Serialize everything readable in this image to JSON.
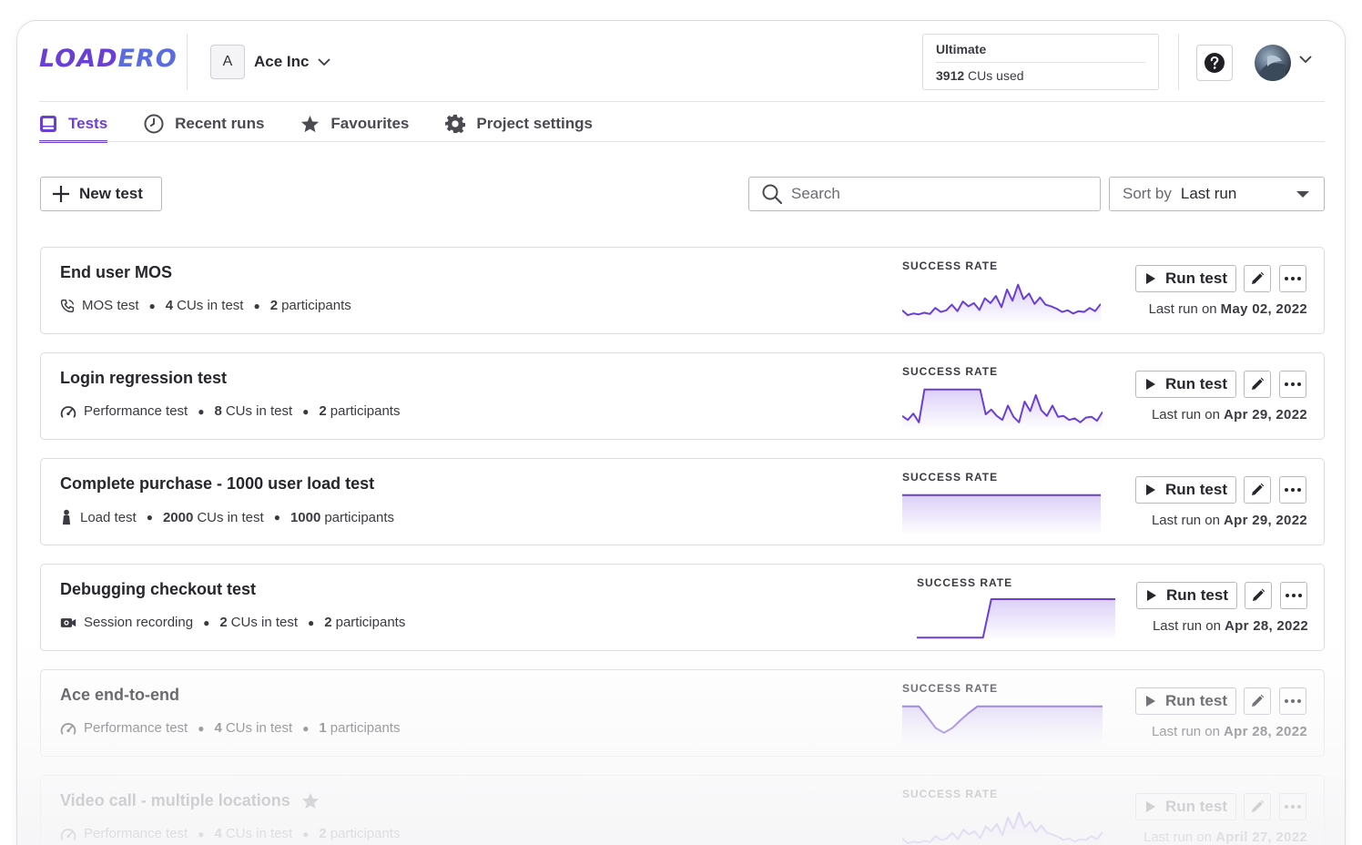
{
  "brand": {
    "logo_a": "LOAD",
    "logo_b": "ERO",
    "accent": "#6a3fd6"
  },
  "org": {
    "badge": "A",
    "name": "Ace Inc"
  },
  "plan": {
    "name": "Ultimate",
    "cus_used_value": "3912",
    "cus_used_suffix": "CUs used"
  },
  "tabs": [
    {
      "label": "Tests",
      "icon": "tests-icon",
      "active": true
    },
    {
      "label": "Recent runs",
      "icon": "clock-icon",
      "active": false
    },
    {
      "label": "Favourites",
      "icon": "star-icon",
      "active": false
    },
    {
      "label": "Project settings",
      "icon": "gear-icon",
      "active": false
    }
  ],
  "toolbar": {
    "new_test_label": "New test",
    "search_placeholder": "Search",
    "sort_prefix": "Sort by",
    "sort_value": "Last run"
  },
  "card_common": {
    "success_rate_label": "SUCCESS RATE",
    "run_label": "Run test",
    "last_run_prefix": "Last run on"
  },
  "tests": [
    {
      "title": "End user MOS",
      "type": "MOS test",
      "type_icon": "phone-icon",
      "cus": "4",
      "cus_suffix": "CUs in test",
      "participants": "2",
      "participants_suffix": "participants",
      "last_run_date": "May 02, 2022",
      "favourite": false,
      "success_rate": [
        0.3,
        0.18,
        0.22,
        0.2,
        0.24,
        0.21,
        0.36,
        0.26,
        0.3,
        0.44,
        0.28,
        0.52,
        0.4,
        0.48,
        0.31,
        0.6,
        0.48,
        0.66,
        0.38,
        0.82,
        0.54,
        0.94,
        0.58,
        0.72,
        0.46,
        0.62,
        0.44,
        0.4,
        0.34,
        0.26,
        0.3,
        0.22,
        0.28,
        0.26,
        0.36,
        0.28,
        0.46
      ]
    },
    {
      "title": "Login regression test",
      "type": "Performance test",
      "type_icon": "gauge-icon",
      "cus": "8",
      "cus_suffix": "CUs in test",
      "participants": "2",
      "participants_suffix": "participants",
      "last_run_date": "Apr 29, 2022",
      "favourite": false,
      "success_rate": [
        0.3,
        0.2,
        0.36,
        0.14,
        0.96,
        0.96,
        0.96,
        0.96,
        0.96,
        0.96,
        0.96,
        0.96,
        0.96,
        0.96,
        0.96,
        0.34,
        0.46,
        0.3,
        0.2,
        0.56,
        0.28,
        0.14,
        0.66,
        0.42,
        0.82,
        0.44,
        0.3,
        0.56,
        0.28,
        0.3,
        0.2,
        0.24,
        0.14,
        0.26,
        0.28,
        0.18,
        0.4
      ]
    },
    {
      "title": "Complete purchase - 1000 user load test",
      "type": "Load test",
      "type_icon": "person-icon",
      "cus": "2000",
      "cus_suffix": "CUs in test",
      "participants": "1000",
      "participants_suffix": "participants",
      "last_run_date": "Apr 29, 2022",
      "favourite": false,
      "success_rate": [
        0.96,
        0.96,
        0.96,
        0.96,
        0.96,
        0.96,
        0.96,
        0.96,
        0.96,
        0.96
      ]
    },
    {
      "title": "Debugging checkout test",
      "type": "Session recording",
      "type_icon": "camera-icon",
      "cus": "2",
      "cus_suffix": "CUs in test",
      "participants": "2",
      "participants_suffix": "participants",
      "last_run_date": "Apr 28, 2022",
      "favourite": false,
      "success_rate": [
        0.04,
        0.04,
        0.04,
        0.04,
        0.04,
        0.04,
        0.04,
        0.04,
        0.04,
        1.0,
        1.0,
        1.0,
        1.0,
        1.0,
        1.0,
        1.0,
        1.0,
        1.0,
        1.0,
        1.0,
        1.0,
        1.0,
        1.0,
        1.0,
        1.0
      ]
    },
    {
      "title": "Ace end-to-end",
      "type": "Performance test",
      "type_icon": "gauge-icon",
      "cus": "4",
      "cus_suffix": "CUs in test",
      "participants": "1",
      "participants_suffix": "participants",
      "last_run_date": "Apr 28, 2022",
      "favourite": false,
      "success_rate": [
        0.96,
        0.96,
        0.96,
        0.7,
        0.42,
        0.3,
        0.42,
        0.62,
        0.8,
        0.96,
        0.96,
        0.96,
        0.96,
        0.96,
        0.96,
        0.96,
        0.96,
        0.96,
        0.96,
        0.96,
        0.96,
        0.96,
        0.96,
        0.96,
        0.96
      ]
    },
    {
      "title": "Video call - multiple locations",
      "type": "Performance test",
      "type_icon": "gauge-icon",
      "cus": "4",
      "cus_suffix": "CUs in test",
      "participants": "2",
      "participants_suffix": "participants",
      "last_run_date": "April 27, 2022",
      "favourite": true,
      "success_rate": [
        0.3,
        0.18,
        0.22,
        0.2,
        0.24,
        0.21,
        0.36,
        0.26,
        0.3,
        0.44,
        0.28,
        0.52,
        0.4,
        0.48,
        0.31,
        0.6,
        0.48,
        0.66,
        0.38,
        0.82,
        0.54,
        0.94,
        0.58,
        0.72,
        0.46,
        0.62,
        0.44,
        0.4,
        0.34,
        0.26,
        0.3,
        0.22,
        0.28,
        0.26,
        0.36,
        0.28,
        0.46
      ]
    }
  ]
}
